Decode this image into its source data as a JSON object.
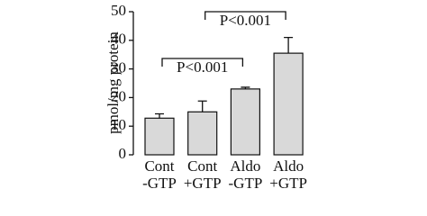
{
  "chart_data": {
    "type": "bar",
    "y_label": "pmol/mg protein",
    "categories": [
      [
        "Cont",
        "-GTP"
      ],
      [
        "Cont",
        "+GTP"
      ],
      [
        "Aldo",
        "-GTP"
      ],
      [
        "Aldo",
        "+GTP"
      ]
    ],
    "values": [
      12.8,
      15,
      23,
      35.5
    ],
    "errors": [
      1.5,
      3.8,
      0.6,
      5.5
    ],
    "color": "#d9d9d9",
    "ylim": [
      0,
      50
    ],
    "yticks": [
      0,
      10,
      20,
      30,
      40,
      50
    ],
    "annotations": [
      "P<0.001",
      "P<0.001"
    ]
  }
}
